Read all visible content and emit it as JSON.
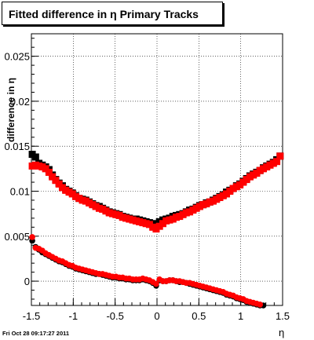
{
  "title": "Fitted difference in  η  Primary Tracks",
  "footer": "Fri Oct 28 09:17:27 2011",
  "chart_data": {
    "type": "scatter",
    "title": "Fitted difference in  η  Primary Tracks",
    "xlabel": "η",
    "ylabel": "difference in η",
    "xlim": [
      -1.5,
      1.5
    ],
    "ylim": [
      -0.0027,
      0.0275
    ],
    "x_ticks": [
      -1.5,
      -1,
      -0.5,
      0,
      0.5,
      1,
      1.5
    ],
    "x_tick_labels": [
      "-1.5",
      "-1",
      "-0.5",
      "0",
      "0.5",
      "1",
      "1.5"
    ],
    "y_ticks": [
      0,
      0.005,
      0.01,
      0.015,
      0.02,
      0.025
    ],
    "y_tick_labels": [
      "0",
      "0.005",
      "0.01",
      "0.015",
      "0.02",
      "0.025"
    ],
    "grid": true,
    "colors": {
      "series_black": "#000000",
      "series_red": "#ff0000"
    },
    "series": [
      {
        "color": "#000000",
        "marker": "square",
        "x": [
          -1.49,
          -1.45,
          -1.41,
          -1.37,
          -1.33,
          -1.29,
          -1.25,
          -1.21,
          -1.17,
          -1.13,
          -1.09,
          -1.05,
          -1.01,
          -0.97,
          -0.93,
          -0.89,
          -0.85,
          -0.81,
          -0.77,
          -0.73,
          -0.69,
          -0.65,
          -0.61,
          -0.57,
          -0.53,
          -0.49,
          -0.45,
          -0.41,
          -0.37,
          -0.33,
          -0.29,
          -0.25,
          -0.21,
          -0.17,
          -0.13,
          -0.09,
          -0.05,
          -0.01,
          0.03,
          0.07,
          0.11,
          0.15,
          0.19,
          0.23,
          0.27,
          0.31,
          0.35,
          0.39,
          0.43,
          0.47,
          0.51,
          0.55,
          0.59,
          0.63,
          0.67,
          0.71,
          0.75,
          0.79,
          0.83,
          0.87,
          0.91,
          0.95,
          0.99,
          1.03,
          1.07,
          1.11,
          1.15,
          1.19,
          1.23,
          1.27,
          1.31,
          1.35,
          1.39,
          1.43,
          1.47
        ],
        "y": [
          0.0141,
          0.0138,
          0.0131,
          0.0129,
          0.0127,
          0.0124,
          0.0118,
          0.0113,
          0.0109,
          0.0106,
          0.0102,
          0.01,
          0.0098,
          0.0095,
          0.0092,
          0.0091,
          0.009,
          0.0088,
          0.0086,
          0.0084,
          0.0083,
          0.0081,
          0.0079,
          0.0077,
          0.0076,
          0.0075,
          0.0074,
          0.0072,
          0.0071,
          0.007,
          0.0069,
          0.0069,
          0.0068,
          0.0067,
          0.0066,
          0.0065,
          0.0064,
          0.0062,
          0.0066,
          0.0068,
          0.0069,
          0.007,
          0.0072,
          0.0073,
          0.0074,
          0.0075,
          0.0077,
          0.0079,
          0.008,
          0.0082,
          0.0084,
          0.0085,
          0.0087,
          0.0088,
          0.009,
          0.0092,
          0.0094,
          0.0096,
          0.0099,
          0.0101,
          0.0103,
          0.0106,
          0.0108,
          0.0111,
          0.0114,
          0.0117,
          0.0119,
          0.0121,
          0.0123,
          0.0126,
          0.0128,
          0.013,
          0.0132,
          0.0135,
          0.0139
        ]
      },
      {
        "color": "#ff0000",
        "marker": "square",
        "x": [
          -1.49,
          -1.45,
          -1.41,
          -1.37,
          -1.33,
          -1.29,
          -1.25,
          -1.21,
          -1.17,
          -1.13,
          -1.09,
          -1.05,
          -1.01,
          -0.97,
          -0.93,
          -0.89,
          -0.85,
          -0.81,
          -0.77,
          -0.73,
          -0.69,
          -0.65,
          -0.61,
          -0.57,
          -0.53,
          -0.49,
          -0.45,
          -0.41,
          -0.37,
          -0.33,
          -0.29,
          -0.25,
          -0.21,
          -0.17,
          -0.13,
          -0.09,
          -0.05,
          -0.01,
          0.03,
          0.07,
          0.11,
          0.15,
          0.19,
          0.23,
          0.27,
          0.31,
          0.35,
          0.39,
          0.43,
          0.47,
          0.51,
          0.55,
          0.59,
          0.63,
          0.67,
          0.71,
          0.75,
          0.79,
          0.83,
          0.87,
          0.91,
          0.95,
          0.99,
          1.03,
          1.07,
          1.11,
          1.15,
          1.19,
          1.23,
          1.27,
          1.31,
          1.35,
          1.39,
          1.43,
          1.47
        ],
        "y": [
          0.0128,
          0.0129,
          0.0128,
          0.0127,
          0.0125,
          0.0121,
          0.0116,
          0.0112,
          0.0108,
          0.0104,
          0.0101,
          0.0099,
          0.0097,
          0.0094,
          0.0092,
          0.009,
          0.0089,
          0.0087,
          0.0085,
          0.0083,
          0.0081,
          0.008,
          0.0078,
          0.0076,
          0.0075,
          0.0074,
          0.0073,
          0.0071,
          0.007,
          0.0069,
          0.0068,
          0.0067,
          0.0066,
          0.0065,
          0.0064,
          0.0063,
          0.006,
          0.0058,
          0.0061,
          0.0064,
          0.0067,
          0.0068,
          0.0069,
          0.0071,
          0.0072,
          0.0074,
          0.0076,
          0.0077,
          0.0079,
          0.0081,
          0.0083,
          0.0085,
          0.0086,
          0.0088,
          0.0089,
          0.0091,
          0.0093,
          0.0095,
          0.0097,
          0.01,
          0.0103,
          0.0105,
          0.0107,
          0.011,
          0.0113,
          0.0116,
          0.0118,
          0.012,
          0.0123,
          0.0125,
          0.0127,
          0.0129,
          0.0131,
          0.0133,
          0.0139
        ]
      },
      {
        "color": "#000000",
        "marker": "circle",
        "x": [
          -1.49,
          -1.45,
          -1.41,
          -1.37,
          -1.33,
          -1.29,
          -1.25,
          -1.21,
          -1.17,
          -1.13,
          -1.09,
          -1.05,
          -1.01,
          -0.97,
          -0.93,
          -0.89,
          -0.85,
          -0.81,
          -0.77,
          -0.73,
          -0.69,
          -0.65,
          -0.61,
          -0.57,
          -0.53,
          -0.49,
          -0.45,
          -0.41,
          -0.37,
          -0.33,
          -0.29,
          -0.25,
          -0.21,
          -0.17,
          -0.13,
          -0.09,
          -0.05,
          -0.01,
          0.03,
          0.07,
          0.11,
          0.15,
          0.19,
          0.23,
          0.27,
          0.31,
          0.35,
          0.39,
          0.43,
          0.47,
          0.51,
          0.55,
          0.59,
          0.63,
          0.67,
          0.71,
          0.75,
          0.79,
          0.83,
          0.87,
          0.91,
          0.95,
          0.99,
          1.03,
          1.07,
          1.11,
          1.15,
          1.19,
          1.23,
          1.27
        ],
        "y": [
          0.0045,
          0.0038,
          0.0035,
          0.0032,
          0.003,
          0.0028,
          0.0026,
          0.0024,
          0.0022,
          0.0021,
          0.0019,
          0.0017,
          0.0016,
          0.0014,
          0.0013,
          0.0012,
          0.0011,
          0.001,
          0.0009,
          0.0008,
          0.0008,
          0.0007,
          0.0006,
          0.0005,
          0.0004,
          0.0004,
          0.0003,
          0.0003,
          0.0002,
          0.0002,
          0.0001,
          0.0001,
          0.0001,
          0.0002,
          0.0001,
          0.0,
          -0.0002,
          -0.0005,
          0.0001,
          0.0,
          0.0,
          0.0001,
          0.0001,
          0.0,
          -0.0001,
          -0.0001,
          -0.0002,
          -0.0003,
          -0.0004,
          -0.0005,
          -0.0006,
          -0.0007,
          -0.0008,
          -0.0009,
          -0.001,
          -0.0011,
          -0.0012,
          -0.0013,
          -0.0015,
          -0.0016,
          -0.0017,
          -0.0019,
          -0.002,
          -0.0021,
          -0.0023,
          -0.0024,
          -0.0025,
          -0.0026,
          -0.0027,
          -0.0027
        ]
      },
      {
        "color": "#ff0000",
        "marker": "circle",
        "x": [
          -1.49,
          -1.45,
          -1.41,
          -1.37,
          -1.33,
          -1.29,
          -1.25,
          -1.21,
          -1.17,
          -1.13,
          -1.09,
          -1.05,
          -1.01,
          -0.97,
          -0.93,
          -0.89,
          -0.85,
          -0.81,
          -0.77,
          -0.73,
          -0.69,
          -0.65,
          -0.61,
          -0.57,
          -0.53,
          -0.49,
          -0.45,
          -0.41,
          -0.37,
          -0.33,
          -0.29,
          -0.25,
          -0.21,
          -0.17,
          -0.13,
          -0.09,
          -0.05,
          -0.01,
          0.03,
          0.07,
          0.11,
          0.15,
          0.19,
          0.23,
          0.27,
          0.31,
          0.35,
          0.39,
          0.43,
          0.47,
          0.51,
          0.55,
          0.59,
          0.63,
          0.67,
          0.71,
          0.75,
          0.79,
          0.83,
          0.87,
          0.91,
          0.95,
          0.99,
          1.03,
          1.07,
          1.11,
          1.15,
          1.19,
          1.23
        ],
        "y": [
          0.0049,
          0.0037,
          0.0036,
          0.0034,
          0.0031,
          0.0029,
          0.0027,
          0.0025,
          0.0023,
          0.0022,
          0.002,
          0.0018,
          0.0017,
          0.0015,
          0.0014,
          0.0013,
          0.0012,
          0.0011,
          0.001,
          0.0009,
          0.0008,
          0.0008,
          0.0007,
          0.0006,
          0.0005,
          0.0005,
          0.0004,
          0.0004,
          0.0003,
          0.0003,
          0.0002,
          0.0002,
          0.0002,
          0.0003,
          0.0002,
          0.0001,
          -0.0001,
          -0.0003,
          0.0002,
          0.0,
          0.0,
          0.0001,
          0.0001,
          0.0,
          0.0,
          -0.0001,
          -0.0002,
          -0.0002,
          -0.0003,
          -0.0004,
          -0.0005,
          -0.0006,
          -0.0007,
          -0.0008,
          -0.0009,
          -0.001,
          -0.0011,
          -0.0012,
          -0.0014,
          -0.0015,
          -0.0016,
          -0.0018,
          -0.0019,
          -0.002,
          -0.0022,
          -0.0023,
          -0.0024,
          -0.0025,
          -0.0026
        ]
      }
    ]
  }
}
